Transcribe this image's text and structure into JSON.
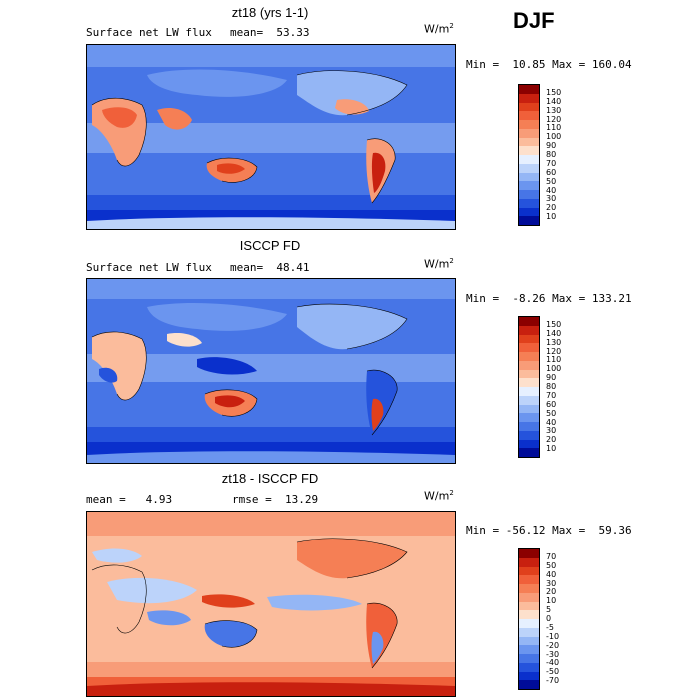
{
  "season": "DJF",
  "panels": [
    {
      "title": "zt18 (yrs 1-1)",
      "field": "Surface net LW flux",
      "stat": "mean=  53.33",
      "unit": "W/m",
      "minmax": "Min =  10.85 Max = 160.04",
      "levels": [
        "150",
        "140",
        "130",
        "120",
        "110",
        "100",
        "90",
        "80",
        "70",
        "60",
        "50",
        "40",
        "30",
        "20",
        "10"
      ],
      "colors": [
        "#8b0000",
        "#c8200f",
        "#e0401c",
        "#f0603a",
        "#f57f55",
        "#f89c78",
        "#fbbc9c",
        "#fde0cc",
        "#e6f0ff",
        "#bcd3fa",
        "#94b6f5",
        "#6b95ef",
        "#4775e6",
        "#2553dc",
        "#0a30cc",
        "#000c99"
      ]
    },
    {
      "title": "ISCCP FD",
      "field": "Surface net LW flux",
      "stat": "mean=  48.41",
      "unit": "W/m",
      "minmax": "Min =  -8.26 Max = 133.21",
      "levels": [
        "150",
        "140",
        "130",
        "120",
        "110",
        "100",
        "90",
        "80",
        "70",
        "60",
        "50",
        "40",
        "30",
        "20",
        "10"
      ],
      "colors": [
        "#8b0000",
        "#c8200f",
        "#e0401c",
        "#f0603a",
        "#f57f55",
        "#f89c78",
        "#fbbc9c",
        "#fde0cc",
        "#e6f0ff",
        "#bcd3fa",
        "#94b6f5",
        "#6b95ef",
        "#4775e6",
        "#2553dc",
        "#0a30cc",
        "#000c99"
      ]
    },
    {
      "title": "zt18 - ISCCP FD",
      "field": "mean =   4.93",
      "stat": "rmse =  13.29",
      "unit": "W/m",
      "minmax": "Min = -56.12 Max =  59.36",
      "levels": [
        "70",
        "50",
        "40",
        "30",
        "20",
        "10",
        "5",
        "0",
        "-5",
        "-10",
        "-20",
        "-30",
        "-40",
        "-50",
        "-70"
      ],
      "colors": [
        "#8b0000",
        "#c8200f",
        "#e0401c",
        "#f0603a",
        "#f57f55",
        "#f89c78",
        "#fbbc9c",
        "#fde0cc",
        "#e6f0ff",
        "#bcd3fa",
        "#94b6f5",
        "#6b95ef",
        "#4775e6",
        "#2553dc",
        "#0a30cc",
        "#000c99"
      ]
    }
  ]
}
